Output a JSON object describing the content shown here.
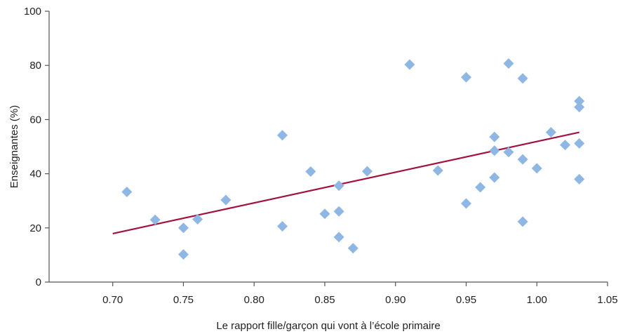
{
  "chart_data": {
    "type": "scatter",
    "title": "",
    "xlabel": "Le rapport fille/garçon qui vont à l’école primaire",
    "ylabel": "Enseignantes (%)",
    "xlim": [
      0.655,
      1.05
    ],
    "ylim": [
      0,
      100
    ],
    "x_ticks": [
      0.7,
      0.75,
      0.8,
      0.85,
      0.9,
      0.95,
      1.0,
      1.05
    ],
    "x_tick_labels": [
      "0.70",
      "0.75",
      "0.80",
      "0.85",
      "0.90",
      "0.95",
      "1.00",
      "1.05"
    ],
    "y_ticks": [
      0,
      20,
      40,
      60,
      80,
      100
    ],
    "y_tick_labels": [
      "0",
      "20",
      "40",
      "60",
      "80",
      "100"
    ],
    "grid": false,
    "marker_color": "#8fb7e3",
    "line_color": "#a3123f",
    "points": [
      {
        "x": 0.71,
        "y": 33.3
      },
      {
        "x": 0.73,
        "y": 23.0
      },
      {
        "x": 0.75,
        "y": 20.0
      },
      {
        "x": 0.75,
        "y": 10.2
      },
      {
        "x": 0.76,
        "y": 23.2
      },
      {
        "x": 0.78,
        "y": 30.3
      },
      {
        "x": 0.82,
        "y": 54.2
      },
      {
        "x": 0.82,
        "y": 20.6
      },
      {
        "x": 0.84,
        "y": 40.8
      },
      {
        "x": 0.85,
        "y": 25.2
      },
      {
        "x": 0.86,
        "y": 35.6
      },
      {
        "x": 0.86,
        "y": 26.1
      },
      {
        "x": 0.86,
        "y": 16.6
      },
      {
        "x": 0.87,
        "y": 12.5
      },
      {
        "x": 0.88,
        "y": 40.9
      },
      {
        "x": 0.91,
        "y": 80.3
      },
      {
        "x": 0.93,
        "y": 41.2
      },
      {
        "x": 0.95,
        "y": 75.6
      },
      {
        "x": 0.95,
        "y": 29.0
      },
      {
        "x": 0.96,
        "y": 35.0
      },
      {
        "x": 0.97,
        "y": 53.6
      },
      {
        "x": 0.97,
        "y": 48.5
      },
      {
        "x": 0.97,
        "y": 38.6
      },
      {
        "x": 0.98,
        "y": 80.7
      },
      {
        "x": 0.98,
        "y": 48.0
      },
      {
        "x": 0.99,
        "y": 75.2
      },
      {
        "x": 0.99,
        "y": 45.3
      },
      {
        "x": 0.99,
        "y": 22.3
      },
      {
        "x": 1.0,
        "y": 42.0
      },
      {
        "x": 1.01,
        "y": 55.3
      },
      {
        "x": 1.02,
        "y": 50.6
      },
      {
        "x": 1.03,
        "y": 66.8
      },
      {
        "x": 1.03,
        "y": 64.6
      },
      {
        "x": 1.03,
        "y": 51.2
      },
      {
        "x": 1.03,
        "y": 38.0
      }
    ],
    "trend_line": {
      "x": [
        0.7,
        1.03
      ],
      "y": [
        17.9,
        55.3
      ]
    }
  }
}
